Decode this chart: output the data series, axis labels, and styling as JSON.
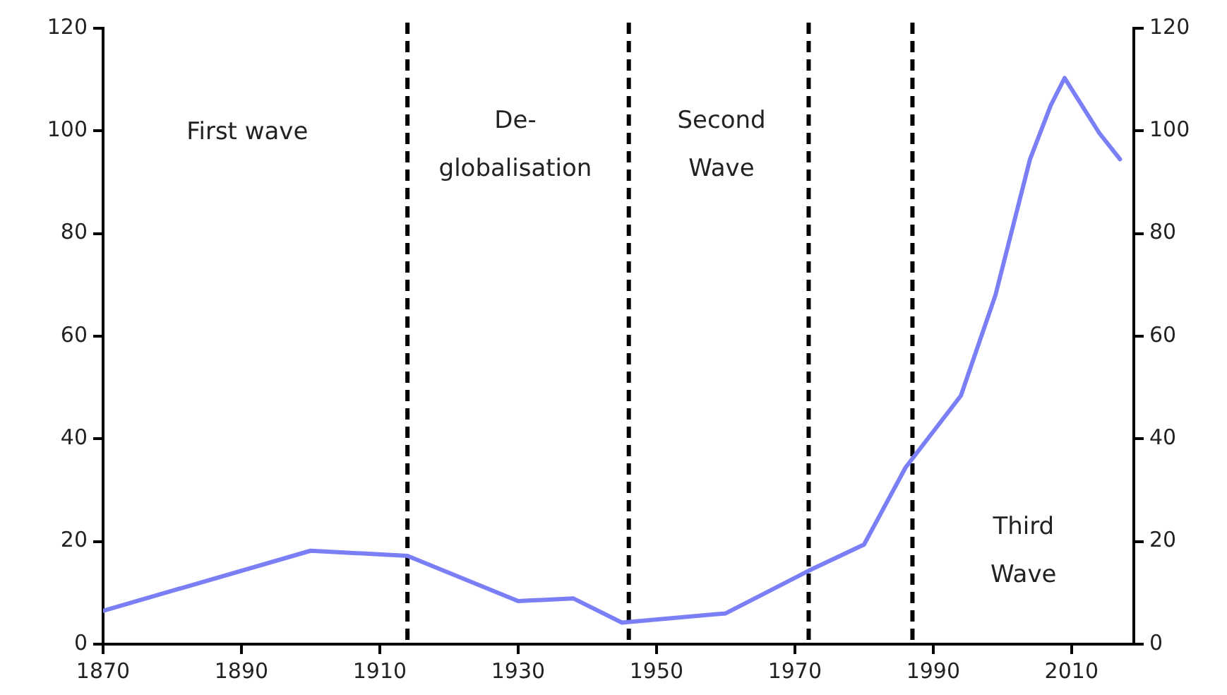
{
  "chart_data": {
    "type": "line",
    "x": [
      1870,
      1900,
      1914,
      1930,
      1938,
      1945,
      1960,
      1972,
      1980,
      1986,
      1994,
      1999,
      2004,
      2007,
      2009,
      2014,
      2017
    ],
    "series": [
      {
        "color": "#7b7ff5",
        "values": [
          6.5,
          18.2,
          17.2,
          8.4,
          8.9,
          4.2,
          6.0,
          14.3,
          19.4,
          34.4,
          48.4,
          68,
          94.5,
          105,
          110.3,
          99.6,
          94.5
        ]
      }
    ],
    "xlim": [
      1870,
      2019
    ],
    "xticks": [
      1870,
      1890,
      1910,
      1930,
      1950,
      1970,
      1990,
      2010
    ],
    "ylim": [
      0,
      120
    ],
    "yticks": [
      0,
      20,
      40,
      60,
      80,
      100,
      120
    ],
    "y2lim": [
      0,
      120
    ],
    "y2ticks": [
      0,
      20,
      40,
      60,
      80,
      100,
      120
    ],
    "ref_lines": [
      {
        "axis": "x",
        "value": 1914,
        "color": "#000000",
        "line_style": "dashed"
      },
      {
        "axis": "x",
        "value": 1946,
        "color": "#000000",
        "line_style": "dashed"
      },
      {
        "axis": "x",
        "value": 1972,
        "color": "#000000",
        "line_style": "dashed"
      },
      {
        "axis": "x",
        "value": 1987,
        "color": "#000000",
        "line_style": "dashed"
      }
    ],
    "annotations": [
      "First wave",
      "De-\nglobalisation",
      "Second\nWave",
      "Third\nWave"
    ],
    "grid": false,
    "legend": false,
    "marker": "none",
    "line_style": "solid"
  }
}
